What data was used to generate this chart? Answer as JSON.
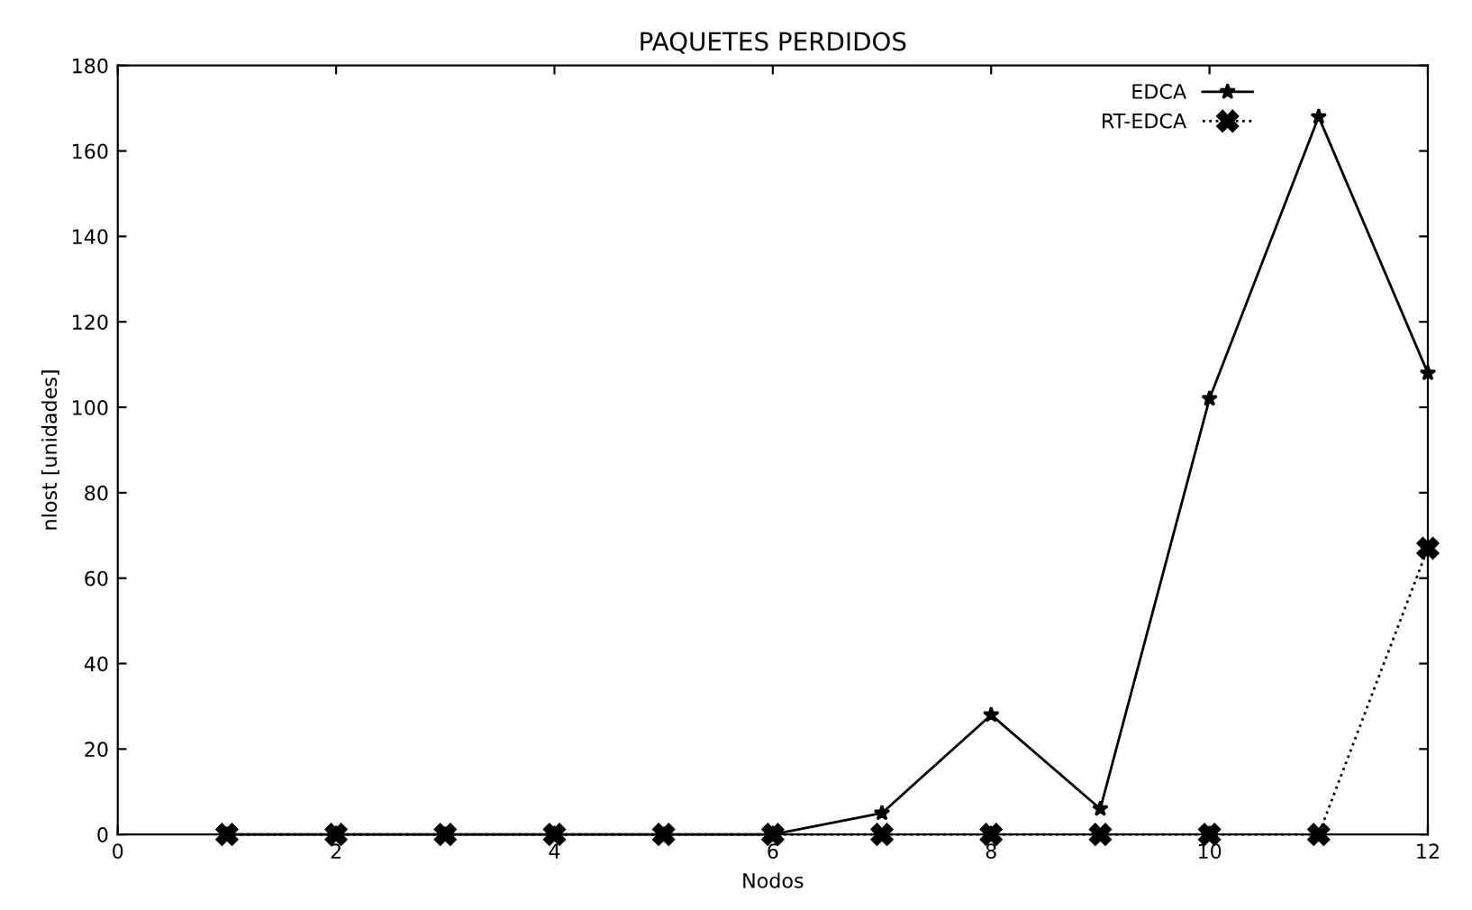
{
  "chart_data": {
    "type": "line",
    "title": "PAQUETES PERDIDOS",
    "xlabel": "Nodos",
    "ylabel": "nlost [unidades]",
    "x": [
      1,
      2,
      3,
      4,
      5,
      6,
      7,
      8,
      9,
      10,
      11,
      12
    ],
    "series": [
      {
        "name": "EDCA",
        "color": "#000000",
        "values": [
          0,
          0,
          0,
          0,
          0,
          0,
          5,
          28,
          6,
          102,
          168,
          108
        ],
        "marker": "star",
        "line_style": "solid"
      },
      {
        "name": "RT-EDCA",
        "color": "#000000",
        "values": [
          0,
          0,
          0,
          0,
          0,
          0,
          0,
          0,
          0,
          0,
          0,
          67
        ],
        "marker": "cross",
        "line_style": "dotted"
      }
    ],
    "xlim": [
      0,
      12
    ],
    "xticks": [
      0,
      2,
      4,
      6,
      8,
      10,
      12
    ],
    "ylim": [
      0,
      180
    ],
    "yticks": [
      0,
      20,
      40,
      60,
      80,
      100,
      120,
      140,
      160,
      180
    ],
    "grid": false,
    "legend": "top right"
  }
}
